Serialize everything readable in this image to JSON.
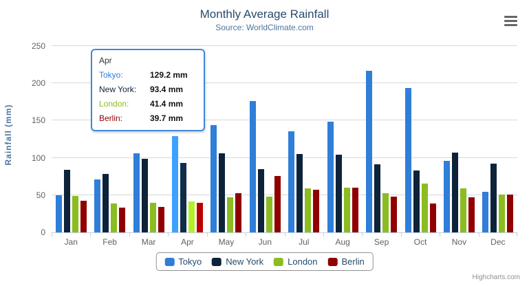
{
  "chart": {
    "title": "Monthly Average Rainfall",
    "subtitle": "Source: WorldClimate.com",
    "credits": "Highcharts.com",
    "menu_icon": "hamburger-icon"
  },
  "chart_data": {
    "type": "bar",
    "title": "Monthly Average Rainfall",
    "subtitle": "Source: WorldClimate.com",
    "categories": [
      "Jan",
      "Feb",
      "Mar",
      "Apr",
      "May",
      "Jun",
      "Jul",
      "Aug",
      "Sep",
      "Oct",
      "Nov",
      "Dec"
    ],
    "series": [
      {
        "name": "Tokyo",
        "color": "#2f7ed8",
        "values": [
          49.9,
          71.5,
          106.4,
          129.2,
          144.0,
          176.0,
          135.6,
          148.5,
          216.4,
          194.1,
          95.6,
          54.4
        ]
      },
      {
        "name": "New York",
        "color": "#0d233a",
        "values": [
          83.6,
          78.8,
          98.5,
          93.4,
          106.0,
          84.5,
          105.0,
          104.3,
          91.2,
          83.5,
          106.6,
          92.3
        ]
      },
      {
        "name": "London",
        "color": "#8bbc21",
        "values": [
          48.9,
          38.8,
          39.3,
          41.4,
          47.0,
          48.3,
          59.0,
          59.6,
          52.4,
          65.2,
          59.3,
          51.2
        ]
      },
      {
        "name": "Berlin",
        "color": "#910000",
        "values": [
          42.4,
          33.2,
          34.5,
          39.7,
          52.6,
          75.5,
          57.4,
          60.4,
          47.6,
          39.1,
          46.8,
          51.1
        ]
      }
    ],
    "xlabel": "",
    "ylabel": "Rainfall (mm)",
    "ylim": [
      0,
      250
    ],
    "yticks": [
      0,
      50,
      100,
      150,
      200,
      250
    ],
    "grid": true,
    "legend_position": "bottom",
    "colors": {
      "title": "#274b6d",
      "subtitle": "#4d759e",
      "axis_labels": "#606060",
      "gridline": "#d8d8d8",
      "axis_line": "#c0d0e0",
      "legend_border": "#909090"
    }
  },
  "tooltip": {
    "category": "Apr",
    "hover_category_index": 3,
    "rows": [
      {
        "label": "Tokyo:",
        "value": "129.2 mm"
      },
      {
        "label": "New York:",
        "value": "93.4 mm"
      },
      {
        "label": "London:",
        "value": "41.4 mm"
      },
      {
        "label": "Berlin:",
        "value": "39.7 mm"
      }
    ]
  }
}
